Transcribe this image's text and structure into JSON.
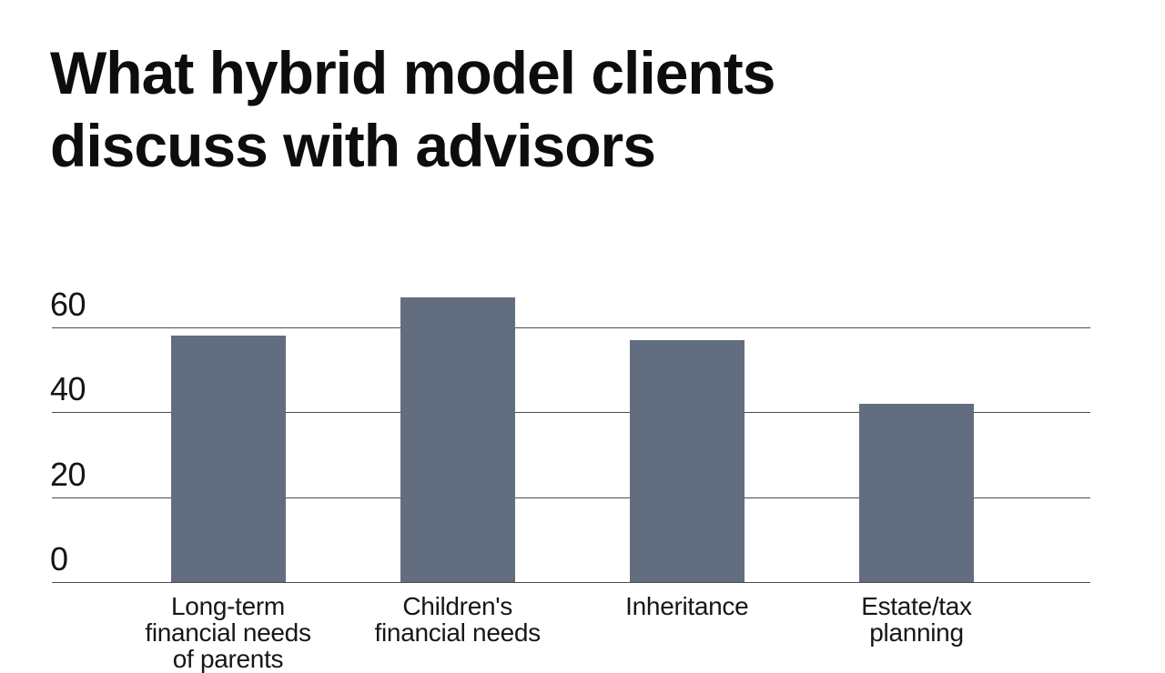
{
  "title": {
    "text": "What hybrid model clients discuss with advisors",
    "lines": [
      "What hybrid model clients",
      "discuss with advisors"
    ]
  },
  "chart_data": {
    "type": "bar",
    "title": "What hybrid model clients discuss with advisors",
    "categories": [
      "Long-term financial needs of parents",
      "Children's financial needs",
      "Inheritance",
      "Estate/tax planning"
    ],
    "category_lines": [
      [
        "Long-term",
        "financial needs",
        "of parents"
      ],
      [
        "Children's",
        "financial needs"
      ],
      [
        "Inheritance"
      ],
      [
        "Estate/tax",
        "planning"
      ]
    ],
    "values": [
      58,
      67,
      57,
      42
    ],
    "yticks": [
      0,
      20,
      40,
      60
    ],
    "ylim": [
      0,
      67
    ],
    "xlabel": "",
    "ylabel": "",
    "grid": "horizontal-only",
    "legend": "none",
    "colors": {
      "bar": "#626E80",
      "gridline": "#4D4D4D",
      "title_text": "#0D0D0D",
      "tick_text": "#141414",
      "category_text": "#161616",
      "background": "#FFFFFF"
    }
  }
}
